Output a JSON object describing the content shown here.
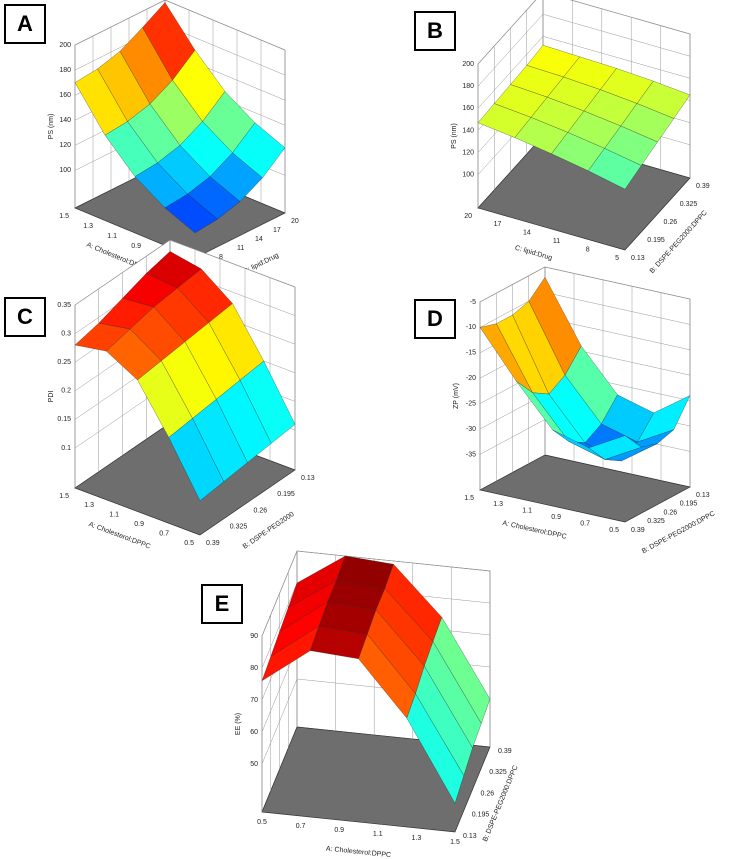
{
  "chart_data": [
    {
      "type": "surface",
      "label": "A",
      "colormap": "jet",
      "x_label": "A: Cholesterol:DPPC",
      "y_label": "C: lipid:Drug",
      "z_label": "PS (nm)",
      "x": [
        0.5,
        0.75,
        1.0,
        1.25,
        1.5
      ],
      "y": [
        5,
        8.75,
        12.5,
        16.25,
        20
      ],
      "z": [
        [
          90,
          92,
          97,
          107,
          122
        ],
        [
          100,
          102,
          107,
          117,
          132
        ],
        [
          115,
          117,
          122,
          132,
          147
        ],
        [
          138,
          140,
          145,
          155,
          170
        ],
        [
          170,
          172,
          177,
          187,
          198
        ]
      ],
      "xlim": [
        0.5,
        1.5
      ],
      "ylim": [
        5,
        20
      ],
      "zlim": [
        70,
        200
      ],
      "xticks": [
        0.5,
        0.7,
        0.9,
        1.1,
        1.3,
        1.5
      ],
      "yticks": [
        5,
        8,
        11,
        14,
        17,
        20
      ],
      "zticks": [
        100,
        120,
        140,
        160,
        180,
        200
      ]
    },
    {
      "type": "surface",
      "label": "B",
      "colormap": "jet",
      "x_label": "C: lipid:Drug",
      "y_label": "B: DSPE-PEG2000:DPPC",
      "z_label": "PS (nm)",
      "x": [
        5,
        8.75,
        12.5,
        16.25,
        20
      ],
      "y": [
        0.13,
        0.195,
        0.26,
        0.325,
        0.39
      ],
      "z": [
        [
          125,
          130,
          135,
          140,
          145
        ],
        [
          132,
          136,
          140,
          144,
          148
        ],
        [
          138,
          141,
          144,
          147,
          150
        ],
        [
          143,
          145,
          147,
          149,
          151
        ],
        [
          147,
          148,
          149,
          150,
          152
        ]
      ],
      "xlim": [
        5,
        20
      ],
      "ylim": [
        0.13,
        0.39
      ],
      "zlim": [
        70,
        200
      ],
      "xticks": [
        5,
        8,
        11,
        14,
        17,
        20
      ],
      "yticks": [
        0.13,
        0.195,
        0.26,
        0.325,
        0.39
      ],
      "zticks": [
        100,
        120,
        140,
        160,
        180,
        200
      ]
    },
    {
      "type": "surface",
      "label": "C",
      "colormap": "jet",
      "x_label": "A: Cholesterol:DPPC",
      "y_label": "B: DSPE-PEG2000",
      "z_label": "PDI",
      "x": [
        0.5,
        0.75,
        1.0,
        1.25,
        1.5
      ],
      "y": [
        0.13,
        0.195,
        0.26,
        0.325,
        0.39
      ],
      "z": [
        [
          0.11,
          0.105,
          0.1,
          0.095,
          0.09
        ],
        [
          0.2,
          0.195,
          0.19,
          0.185,
          0.18
        ],
        [
          0.28,
          0.275,
          0.27,
          0.265,
          0.26
        ],
        [
          0.32,
          0.315,
          0.31,
          0.3,
          0.29
        ],
        [
          0.33,
          0.32,
          0.305,
          0.29,
          0.28
        ]
      ],
      "xlim": [
        0.5,
        1.5
      ],
      "ylim": [
        0.13,
        0.39
      ],
      "zlim": [
        0.03,
        0.35
      ],
      "xticks": [
        0.5,
        0.7,
        0.9,
        1.1,
        1.3,
        1.5
      ],
      "yticks": [
        0.13,
        0.195,
        0.26,
        0.325,
        0.39
      ],
      "zticks": [
        0.1,
        0.15,
        0.2,
        0.25,
        0.3,
        0.35
      ]
    },
    {
      "type": "surface",
      "label": "D",
      "colormap": "jet",
      "x_label": "A: Cholesterol:DPPC",
      "y_label": "B: DSPE-PEG2000:DPPC",
      "z_label": "ZP (mV)",
      "x": [
        0.5,
        0.75,
        1.0,
        1.25,
        1.5
      ],
      "y": [
        0.13,
        0.195,
        0.26,
        0.325,
        0.39
      ],
      "z": [
        [
          -24,
          -29,
          -30,
          -29,
          -25
        ],
        [
          -29,
          -33,
          -35,
          -33,
          -29
        ],
        [
          -27,
          -31,
          -33,
          -31,
          -27
        ],
        [
          -19,
          -23,
          -25,
          -23,
          -19
        ],
        [
          -7,
          -10,
          -11,
          -11,
          -10
        ]
      ],
      "xlim": [
        0.5,
        1.5
      ],
      "ylim": [
        0.13,
        0.39
      ],
      "zlim": [
        -42,
        -5
      ],
      "xticks": [
        0.5,
        0.7,
        0.9,
        1.1,
        1.3,
        1.5
      ],
      "yticks": [
        0.13,
        0.195,
        0.26,
        0.325,
        0.39
      ],
      "zticks": [
        -35,
        -30,
        -25,
        -20,
        -15,
        -10,
        -5
      ]
    },
    {
      "type": "surface",
      "label": "E",
      "colormap": "jet",
      "x_label": "A: Cholesterol:DPPC",
      "y_label": "B: DSPE-PEG2000:DPPC",
      "z_label": "EE (%)",
      "x": [
        0.5,
        0.75,
        1.0,
        1.25,
        1.5
      ],
      "y": [
        0.13,
        0.195,
        0.26,
        0.325,
        0.39
      ],
      "z": [
        [
          76,
          77,
          78,
          79,
          80
        ],
        [
          87,
          88,
          89,
          89,
          90
        ],
        [
          86,
          87,
          88,
          88,
          89
        ],
        [
          69,
          70,
          72,
          73,
          74
        ],
        [
          44,
          46,
          48,
          49,
          50
        ]
      ],
      "xlim": [
        0.5,
        1.5
      ],
      "ylim": [
        0.13,
        0.39
      ],
      "zlim": [
        35,
        90
      ],
      "xticks": [
        0.5,
        0.7,
        0.9,
        1.1,
        1.3,
        1.5
      ],
      "yticks": [
        0.13,
        0.195,
        0.26,
        0.325,
        0.39
      ],
      "zticks": [
        50,
        60,
        70,
        80,
        90
      ]
    }
  ]
}
